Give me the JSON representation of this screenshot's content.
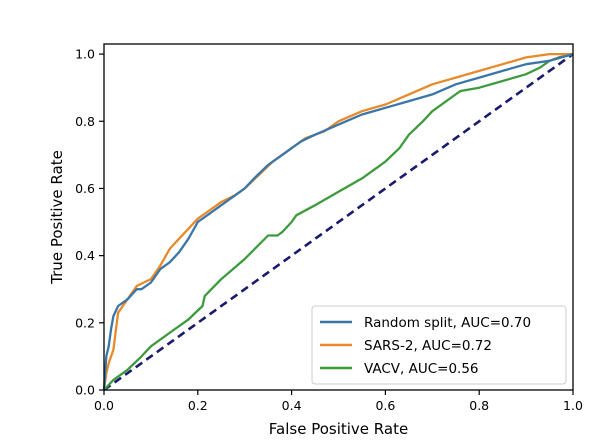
{
  "chart_data": {
    "type": "line",
    "title": "",
    "xlabel": "False Positive Rate",
    "ylabel": "True Positive Rate",
    "xlim": [
      0.0,
      1.0
    ],
    "ylim": [
      0.0,
      1.03
    ],
    "xticks": [
      0.0,
      0.2,
      0.4,
      0.6,
      0.8,
      1.0
    ],
    "yticks": [
      0.0,
      0.2,
      0.4,
      0.6,
      0.8,
      1.0
    ],
    "xtick_labels": [
      "0.0",
      "0.2",
      "0.4",
      "0.6",
      "0.8",
      "1.0"
    ],
    "ytick_labels": [
      "0.0",
      "0.2",
      "0.4",
      "0.6",
      "0.8",
      "1.0"
    ],
    "grid": false,
    "legend_position": "lower-right",
    "series": [
      {
        "name": "Random split, AUC=0.70",
        "color": "#3a76a8",
        "x": [
          0.0,
          0.005,
          0.01,
          0.015,
          0.02,
          0.03,
          0.05,
          0.07,
          0.08,
          0.1,
          0.12,
          0.14,
          0.16,
          0.18,
          0.2,
          0.22,
          0.25,
          0.28,
          0.3,
          0.32,
          0.35,
          0.38,
          0.42,
          0.45,
          0.5,
          0.55,
          0.6,
          0.65,
          0.7,
          0.75,
          0.8,
          0.85,
          0.9,
          0.95,
          1.0
        ],
        "y": [
          0.0,
          0.1,
          0.13,
          0.18,
          0.22,
          0.25,
          0.27,
          0.3,
          0.3,
          0.32,
          0.36,
          0.38,
          0.41,
          0.45,
          0.5,
          0.52,
          0.55,
          0.58,
          0.6,
          0.63,
          0.67,
          0.7,
          0.74,
          0.76,
          0.79,
          0.82,
          0.84,
          0.86,
          0.88,
          0.91,
          0.93,
          0.95,
          0.97,
          0.98,
          1.0
        ]
      },
      {
        "name": "SARS-2, AUC=0.72",
        "color": "#e8892b",
        "x": [
          0.0,
          0.005,
          0.01,
          0.02,
          0.03,
          0.05,
          0.07,
          0.1,
          0.12,
          0.14,
          0.16,
          0.18,
          0.2,
          0.22,
          0.25,
          0.28,
          0.3,
          0.33,
          0.36,
          0.4,
          0.43,
          0.47,
          0.5,
          0.55,
          0.6,
          0.65,
          0.7,
          0.75,
          0.8,
          0.85,
          0.9,
          0.95,
          1.0
        ],
        "y": [
          0.0,
          0.05,
          0.08,
          0.12,
          0.23,
          0.27,
          0.31,
          0.33,
          0.37,
          0.42,
          0.45,
          0.48,
          0.51,
          0.53,
          0.56,
          0.58,
          0.6,
          0.64,
          0.68,
          0.72,
          0.75,
          0.77,
          0.8,
          0.83,
          0.85,
          0.88,
          0.91,
          0.93,
          0.95,
          0.97,
          0.99,
          1.0,
          1.0
        ]
      },
      {
        "name": "VACV, AUC=0.56",
        "color": "#3d9a3d",
        "x": [
          0.0,
          0.02,
          0.05,
          0.08,
          0.1,
          0.12,
          0.15,
          0.18,
          0.21,
          0.215,
          0.25,
          0.3,
          0.35,
          0.37,
          0.38,
          0.4,
          0.41,
          0.45,
          0.5,
          0.55,
          0.6,
          0.63,
          0.65,
          0.68,
          0.7,
          0.73,
          0.76,
          0.8,
          0.85,
          0.9,
          0.93,
          0.95,
          0.97,
          1.0
        ],
        "y": [
          0.0,
          0.03,
          0.06,
          0.1,
          0.13,
          0.15,
          0.18,
          0.21,
          0.25,
          0.28,
          0.33,
          0.39,
          0.46,
          0.46,
          0.47,
          0.5,
          0.52,
          0.55,
          0.59,
          0.63,
          0.68,
          0.72,
          0.76,
          0.8,
          0.83,
          0.86,
          0.89,
          0.9,
          0.92,
          0.94,
          0.96,
          0.98,
          0.99,
          1.0
        ]
      },
      {
        "name": "",
        "color": "#1a1a6e",
        "dashed": true,
        "x": [
          0.0,
          1.0
        ],
        "y": [
          0.0,
          1.0
        ]
      }
    ]
  }
}
